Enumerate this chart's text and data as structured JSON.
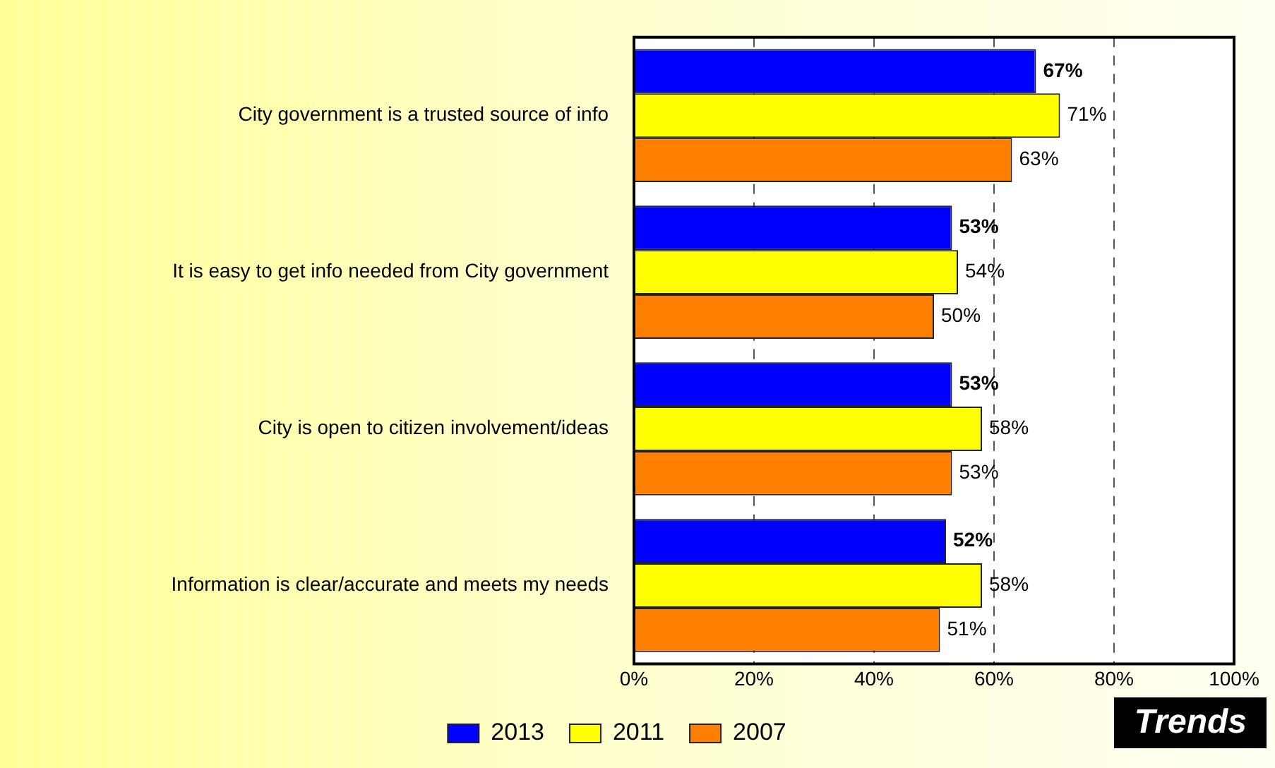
{
  "chart_data": {
    "type": "bar",
    "orientation": "horizontal",
    "categories": [
      "City government is a trusted source of info",
      "It is easy to get info needed from City government",
      "City is open to citizen involvement/ideas",
      "Information is clear/accurate and meets my needs"
    ],
    "series": [
      {
        "name": "2013",
        "color": "#0000ff",
        "values": [
          67,
          53,
          53,
          52
        ],
        "value_labels": [
          "67%",
          "53%",
          "53%",
          "52%"
        ]
      },
      {
        "name": "2011",
        "color": "#ffff00",
        "values": [
          71,
          54,
          58,
          58
        ],
        "value_labels": [
          "71%",
          "54%",
          "58%",
          "58%"
        ]
      },
      {
        "name": "2007",
        "color": "#ff8000",
        "values": [
          63,
          50,
          53,
          51
        ],
        "value_labels": [
          "63%",
          "50%",
          "53%",
          "51%"
        ]
      }
    ],
    "xlim": [
      0,
      100
    ],
    "xticks": [
      {
        "value": 0,
        "label": "0%"
      },
      {
        "value": 20,
        "label": "20%"
      },
      {
        "value": 40,
        "label": "40%"
      },
      {
        "value": 60,
        "label": "60%"
      },
      {
        "value": 80,
        "label": "80%"
      },
      {
        "value": 100,
        "label": "100%"
      }
    ],
    "grid": "x",
    "legend": "bottom",
    "annotations": [
      "Trends"
    ]
  }
}
